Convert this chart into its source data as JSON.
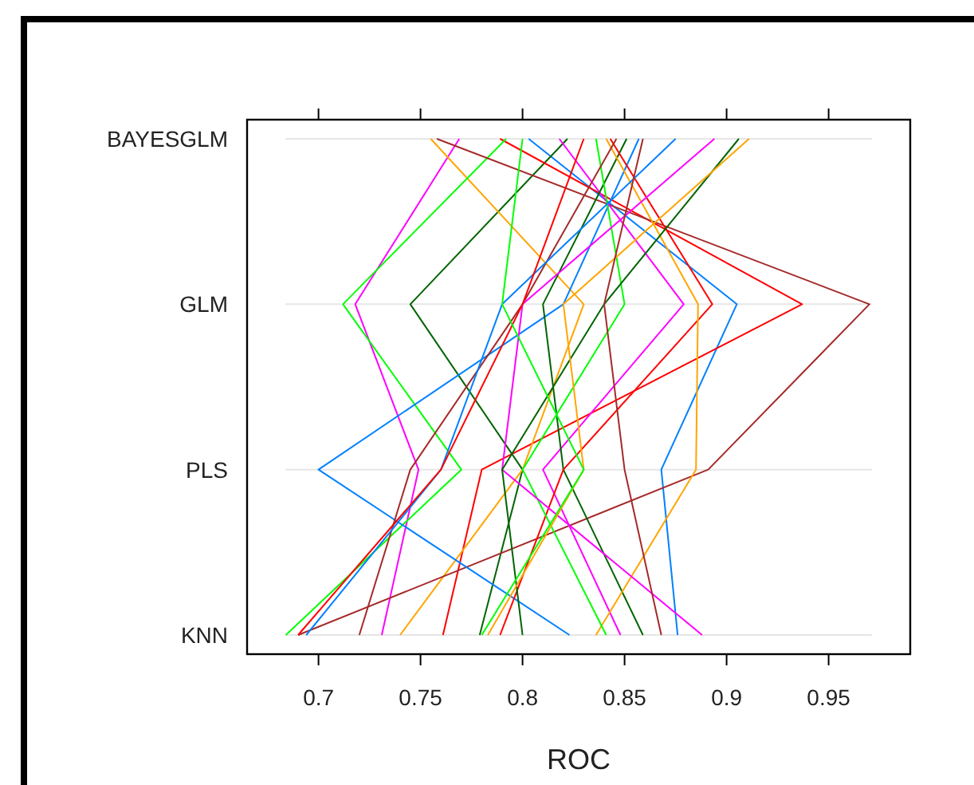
{
  "chart_data": {
    "type": "line",
    "orientation": "horizontal",
    "xlabel": "ROC",
    "categories": [
      "BAYESGLM",
      "GLM",
      "PLS",
      "KNN"
    ],
    "xlim": [
      0.665,
      0.99
    ],
    "xticks": [
      0.7,
      0.75,
      0.8,
      0.85,
      0.9,
      0.95
    ],
    "grid": "y",
    "series": [
      {
        "color": "#0080ff",
        "values": [
          0.803,
          0.905,
          0.868,
          0.876
        ]
      },
      {
        "color": "#ff00ff",
        "values": [
          0.769,
          0.718,
          0.749,
          0.731
        ]
      },
      {
        "color": "#006400",
        "values": [
          0.822,
          0.745,
          0.8,
          0.779
        ]
      },
      {
        "color": "#ff0000",
        "values": [
          0.789,
          0.937,
          0.78,
          0.761
        ]
      },
      {
        "color": "#ffa500",
        "values": [
          0.755,
          0.83,
          0.8,
          0.74
        ]
      },
      {
        "color": "#00ff00",
        "values": [
          0.792,
          0.712,
          0.77,
          0.684
        ]
      },
      {
        "color": "#a52a2a",
        "values": [
          0.758,
          0.97,
          0.891,
          0.69
        ]
      },
      {
        "color": "#0080ff",
        "values": [
          0.857,
          0.82,
          0.7,
          0.823
        ]
      },
      {
        "color": "#ff00ff",
        "values": [
          0.818,
          0.879,
          0.81,
          0.848
        ]
      },
      {
        "color": "#006400",
        "values": [
          0.851,
          0.81,
          0.82,
          0.859
        ]
      },
      {
        "color": "#ff0000",
        "values": [
          0.843,
          0.893,
          0.82,
          0.789
        ]
      },
      {
        "color": "#ffa500",
        "values": [
          0.841,
          0.886,
          0.885,
          0.836
        ]
      },
      {
        "color": "#00ff00",
        "values": [
          0.836,
          0.85,
          0.8,
          0.841
        ]
      },
      {
        "color": "#a52a2a",
        "values": [
          0.846,
          0.8,
          0.745,
          0.72
        ]
      },
      {
        "color": "#0080ff",
        "values": [
          0.875,
          0.79,
          0.76,
          0.694
        ]
      },
      {
        "color": "#ff00ff",
        "values": [
          0.894,
          0.8,
          0.79,
          0.888
        ]
      },
      {
        "color": "#006400",
        "values": [
          0.906,
          0.84,
          0.79,
          0.8
        ]
      },
      {
        "color": "#ff0000",
        "values": [
          0.83,
          0.8,
          0.76,
          0.69
        ]
      },
      {
        "color": "#ffa500",
        "values": [
          0.911,
          0.82,
          0.83,
          0.783
        ]
      },
      {
        "color": "#00ff00",
        "values": [
          0.8,
          0.79,
          0.83,
          0.78
        ]
      },
      {
        "color": "#a52a2a",
        "values": [
          0.859,
          0.84,
          0.85,
          0.868
        ]
      }
    ]
  }
}
